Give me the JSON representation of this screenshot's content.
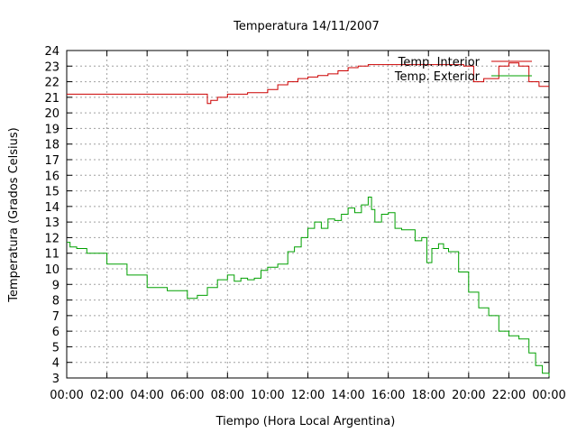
{
  "chart_data": {
    "type": "line",
    "title": "Temperatura 14/11/2007",
    "xlabel": "Tiempo (Hora Local Argentina)",
    "ylabel": "Temperatura (Grados Celsius)",
    "xlim": [
      "00:00",
      "24:00"
    ],
    "ylim": [
      3,
      24
    ],
    "grid": true,
    "legend_position": "top-right",
    "x_tick_labels": [
      "00:00",
      "02:00",
      "04:00",
      "06:00",
      "08:00",
      "10:00",
      "12:00",
      "14:00",
      "16:00",
      "18:00",
      "20:00",
      "22:00",
      "00:00"
    ],
    "y_tick_labels": [
      "3",
      "4",
      "5",
      "6",
      "7",
      "8",
      "9",
      "10",
      "11",
      "12",
      "13",
      "14",
      "15",
      "16",
      "17",
      "18",
      "19",
      "20",
      "21",
      "22",
      "23",
      "24"
    ],
    "series": [
      {
        "name": "Temp. Interior",
        "color": "#cc0000",
        "x": [
          "00:00",
          "01:00",
          "02:00",
          "03:00",
          "04:00",
          "05:00",
          "06:00",
          "06:48",
          "07:00",
          "07:10",
          "07:30",
          "08:00",
          "09:00",
          "10:00",
          "10:30",
          "11:00",
          "11:30",
          "12:00",
          "12:30",
          "13:00",
          "13:30",
          "14:00",
          "14:30",
          "15:00",
          "16:00",
          "17:00",
          "18:00",
          "19:00",
          "19:45",
          "20:15",
          "20:45",
          "21:30",
          "22:00",
          "22:30",
          "23:00",
          "23:30",
          "24:00"
        ],
        "values": [
          21.2,
          21.2,
          21.2,
          21.2,
          21.2,
          21.2,
          21.2,
          21.2,
          20.6,
          20.8,
          21.0,
          21.2,
          21.3,
          21.5,
          21.8,
          22.0,
          22.2,
          22.3,
          22.4,
          22.5,
          22.7,
          22.9,
          23.0,
          23.1,
          23.1,
          23.1,
          23.1,
          23.1,
          23.0,
          22.0,
          22.2,
          23.0,
          23.2,
          23.0,
          22.0,
          21.7,
          21.7
        ]
      },
      {
        "name": "Temp. Exterior",
        "color": "#00a000",
        "x": [
          "00:00",
          "00:10",
          "00:30",
          "01:00",
          "02:00",
          "03:00",
          "04:00",
          "05:00",
          "06:00",
          "06:30",
          "07:00",
          "07:30",
          "08:00",
          "08:20",
          "08:40",
          "09:00",
          "09:20",
          "09:40",
          "10:00",
          "10:30",
          "11:00",
          "11:20",
          "11:40",
          "12:00",
          "12:20",
          "12:40",
          "13:00",
          "13:20",
          "13:40",
          "14:00",
          "14:20",
          "14:40",
          "15:00",
          "15:10",
          "15:20",
          "15:40",
          "16:00",
          "16:20",
          "16:40",
          "17:00",
          "17:20",
          "17:40",
          "17:55",
          "18:10",
          "18:30",
          "18:45",
          "19:00",
          "19:30",
          "20:00",
          "20:30",
          "21:00",
          "21:30",
          "22:00",
          "22:30",
          "23:00",
          "23:20",
          "23:40",
          "24:00"
        ],
        "values": [
          11.7,
          11.4,
          11.3,
          11.0,
          10.3,
          9.6,
          8.8,
          8.6,
          8.1,
          8.3,
          8.8,
          9.3,
          9.6,
          9.2,
          9.4,
          9.3,
          9.4,
          9.9,
          10.1,
          10.3,
          11.1,
          11.4,
          12.0,
          12.6,
          13.0,
          12.6,
          13.2,
          13.1,
          13.5,
          13.9,
          13.6,
          14.1,
          14.6,
          13.8,
          13.0,
          13.5,
          13.6,
          12.6,
          12.5,
          12.5,
          11.8,
          12.0,
          10.4,
          11.3,
          11.6,
          11.3,
          11.1,
          9.8,
          8.5,
          7.5,
          7.0,
          6.0,
          5.7,
          5.5,
          4.6,
          3.8,
          3.3,
          3.1
        ]
      }
    ]
  }
}
